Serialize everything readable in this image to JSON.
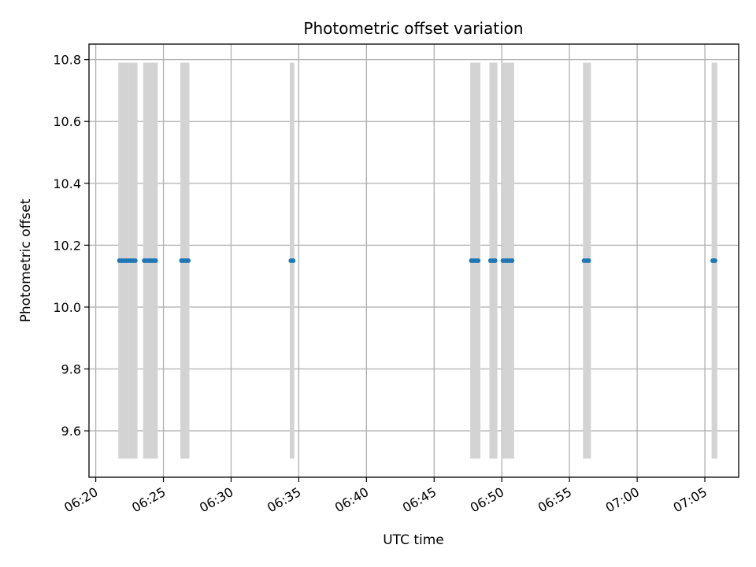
{
  "chart_data": {
    "type": "scatter",
    "title": "Photometric offset variation",
    "xlabel": "UTC time",
    "ylabel": "Photometric offset",
    "x_axis_kind": "time",
    "xlim": [
      "06:19:30",
      "07:07:30"
    ],
    "ylim": [
      9.45,
      10.85
    ],
    "x_ticks": [
      "06:20",
      "06:25",
      "06:30",
      "06:35",
      "06:40",
      "06:45",
      "06:50",
      "06:55",
      "07:00",
      "07:05"
    ],
    "y_ticks": [
      9.6,
      9.8,
      10.0,
      10.2,
      10.4,
      10.6,
      10.8
    ],
    "grid": true,
    "colors": {
      "points": "#1f77b4",
      "bands": "#d3d3d3",
      "grid": "#b0b0b0",
      "axes": "#000000"
    },
    "bands": {
      "y_range": [
        9.51,
        10.79
      ],
      "intervals": [
        [
          "06:21:40",
          "06:22:25"
        ],
        [
          "06:22:25",
          "06:23:05"
        ],
        [
          "06:23:30",
          "06:24:35"
        ],
        [
          "06:26:15",
          "06:26:55"
        ],
        [
          "06:34:20",
          "06:34:40"
        ],
        [
          "06:47:40",
          "06:48:25"
        ],
        [
          "06:49:05",
          "06:49:40"
        ],
        [
          "06:50:00",
          "06:50:55"
        ],
        [
          "06:56:00",
          "06:56:35"
        ],
        [
          "07:05:30",
          "07:05:55"
        ]
      ]
    },
    "series": [
      {
        "value": 10.15,
        "x": [
          "06:21:45",
          "06:21:55",
          "06:22:05",
          "06:22:15",
          "06:22:25",
          "06:22:35",
          "06:22:45",
          "06:22:55",
          "06:23:35",
          "06:23:45",
          "06:23:55",
          "06:24:05",
          "06:24:15",
          "06:24:25",
          "06:26:20",
          "06:26:30",
          "06:26:40",
          "06:26:50",
          "06:34:25",
          "06:34:35",
          "06:47:45",
          "06:47:55",
          "06:48:05",
          "06:48:15",
          "06:49:10",
          "06:49:20",
          "06:49:30",
          "06:50:05",
          "06:50:15",
          "06:50:25",
          "06:50:35",
          "06:50:45",
          "06:56:05",
          "06:56:15",
          "06:56:25",
          "07:05:35",
          "07:05:45"
        ]
      }
    ]
  }
}
